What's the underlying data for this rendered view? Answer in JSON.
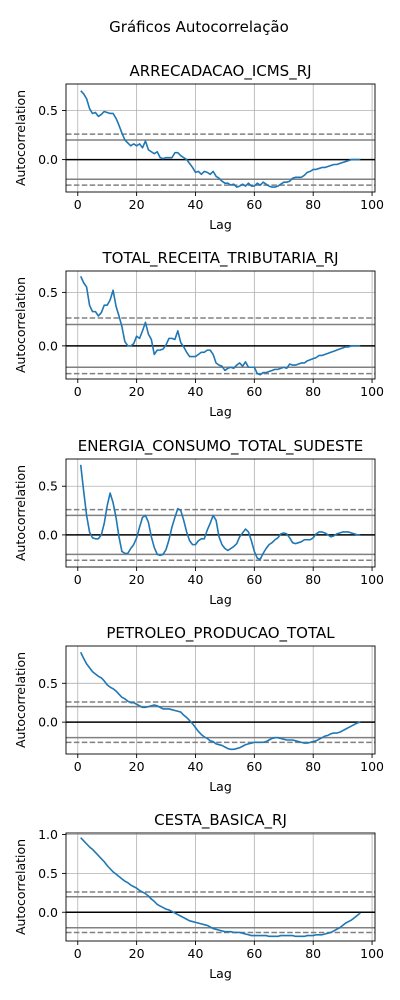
{
  "figure_title": "Gráficos Autocorrelação",
  "colors": {
    "line": "#1f77b4",
    "zero_line": "#000000",
    "band_solid": "#808080",
    "band_dashed": "#808080",
    "grid": "#b0b0b0"
  },
  "chart_data": [
    {
      "type": "line",
      "title": "ARRECADACAO_ICMS_RJ",
      "xlabel": "Lag",
      "ylabel": "Autocorrelation",
      "xlim": [
        -4,
        101
      ],
      "ylim": [
        -0.33,
        0.77
      ],
      "xticks": [
        0,
        20,
        40,
        60,
        80,
        100
      ],
      "yticks": [
        0.5,
        0.0,
        -0.5
      ],
      "ytick_labels": [
        "0.5",
        "0.0"
      ],
      "grid": true,
      "conf_solid": [
        0.2,
        -0.2
      ],
      "conf_dashed": [
        0.26,
        -0.26
      ],
      "x": [
        1,
        2,
        3,
        4,
        5,
        6,
        7,
        8,
        9,
        10,
        11,
        12,
        13,
        14,
        15,
        16,
        17,
        18,
        19,
        20,
        21,
        22,
        23,
        24,
        25,
        26,
        27,
        28,
        29,
        30,
        31,
        32,
        33,
        34,
        35,
        36,
        37,
        38,
        39,
        40,
        41,
        42,
        43,
        44,
        45,
        46,
        47,
        48,
        49,
        50,
        51,
        52,
        53,
        54,
        55,
        56,
        57,
        58,
        59,
        60,
        61,
        62,
        63,
        64,
        65,
        66,
        67,
        68,
        69,
        70,
        71,
        72,
        73,
        74,
        75,
        76,
        77,
        78,
        79,
        80,
        81,
        82,
        83,
        84,
        85,
        86,
        87,
        88,
        89,
        90,
        91,
        92,
        93,
        94,
        95,
        96
      ],
      "values": [
        0.7,
        0.67,
        0.62,
        0.52,
        0.47,
        0.48,
        0.44,
        0.46,
        0.49,
        0.48,
        0.47,
        0.47,
        0.42,
        0.35,
        0.27,
        0.2,
        0.17,
        0.14,
        0.16,
        0.14,
        0.16,
        0.12,
        0.19,
        0.1,
        0.08,
        0.06,
        0.08,
        0.02,
        0.01,
        0.02,
        0.02,
        0.02,
        0.07,
        0.07,
        0.04,
        0.02,
        0.0,
        -0.04,
        -0.08,
        -0.13,
        -0.12,
        -0.15,
        -0.12,
        -0.13,
        -0.15,
        -0.12,
        -0.17,
        -0.19,
        -0.22,
        -0.24,
        -0.24,
        -0.26,
        -0.25,
        -0.28,
        -0.27,
        -0.25,
        -0.27,
        -0.24,
        -0.27,
        -0.27,
        -0.24,
        -0.26,
        -0.23,
        -0.25,
        -0.27,
        -0.28,
        -0.28,
        -0.27,
        -0.25,
        -0.23,
        -0.23,
        -0.22,
        -0.19,
        -0.18,
        -0.18,
        -0.18,
        -0.16,
        -0.13,
        -0.12,
        -0.1,
        -0.1,
        -0.09,
        -0.08,
        -0.08,
        -0.07,
        -0.06,
        -0.05,
        -0.05,
        -0.04,
        -0.03,
        -0.02,
        -0.01,
        0.0,
        0.0,
        0.0,
        0.0
      ]
    },
    {
      "type": "line",
      "title": "TOTAL_RECEITA_TRIBUTARIA_RJ",
      "xlabel": "Lag",
      "ylabel": "Autocorrelation",
      "xlim": [
        -4,
        101
      ],
      "ylim": [
        -0.31,
        0.7
      ],
      "xticks": [
        0,
        20,
        40,
        60,
        80,
        100
      ],
      "yticks": [
        0.5,
        0.0,
        -0.5
      ],
      "ytick_labels": [
        "0.5",
        "0.0"
      ],
      "grid": true,
      "conf_solid": [
        0.2,
        -0.2
      ],
      "conf_dashed": [
        0.26,
        -0.26
      ],
      "x": [
        1,
        2,
        3,
        4,
        5,
        6,
        7,
        8,
        9,
        10,
        11,
        12,
        13,
        14,
        15,
        16,
        17,
        18,
        19,
        20,
        21,
        22,
        23,
        24,
        25,
        26,
        27,
        28,
        29,
        30,
        31,
        32,
        33,
        34,
        35,
        36,
        37,
        38,
        39,
        40,
        41,
        42,
        43,
        44,
        45,
        46,
        47,
        48,
        49,
        50,
        51,
        52,
        53,
        54,
        55,
        56,
        57,
        58,
        59,
        60,
        61,
        62,
        63,
        64,
        65,
        66,
        67,
        68,
        69,
        70,
        71,
        72,
        73,
        74,
        75,
        76,
        77,
        78,
        79,
        80,
        81,
        82,
        83,
        84,
        85,
        86,
        87,
        88,
        89,
        90,
        91,
        92,
        93,
        94,
        95,
        96
      ],
      "values": [
        0.65,
        0.59,
        0.55,
        0.38,
        0.32,
        0.32,
        0.28,
        0.31,
        0.38,
        0.38,
        0.43,
        0.52,
        0.37,
        0.28,
        0.18,
        0.04,
        0.0,
        0.0,
        0.02,
        0.09,
        0.07,
        0.14,
        0.22,
        0.11,
        0.06,
        -0.08,
        -0.04,
        -0.04,
        -0.03,
        0.01,
        0.07,
        0.07,
        0.06,
        0.14,
        0.03,
        -0.01,
        -0.06,
        -0.1,
        -0.1,
        -0.1,
        -0.08,
        -0.06,
        -0.06,
        -0.04,
        -0.04,
        -0.08,
        -0.16,
        -0.18,
        -0.19,
        -0.23,
        -0.21,
        -0.2,
        -0.21,
        -0.18,
        -0.16,
        -0.19,
        -0.15,
        -0.2,
        -0.2,
        -0.2,
        -0.26,
        -0.27,
        -0.25,
        -0.25,
        -0.24,
        -0.23,
        -0.22,
        -0.22,
        -0.21,
        -0.2,
        -0.21,
        -0.17,
        -0.18,
        -0.18,
        -0.17,
        -0.16,
        -0.16,
        -0.14,
        -0.13,
        -0.12,
        -0.11,
        -0.09,
        -0.09,
        -0.08,
        -0.07,
        -0.06,
        -0.05,
        -0.04,
        -0.03,
        -0.02,
        -0.01,
        -0.01,
        0.0,
        0.0,
        0.0,
        0.0
      ]
    },
    {
      "type": "line",
      "title": "ENERGIA_CONSUMO_TOTAL_SUDESTE",
      "xlabel": "Lag",
      "ylabel": "Autocorrelation",
      "xlim": [
        -4,
        101
      ],
      "ylim": [
        -0.33,
        0.78
      ],
      "xticks": [
        0,
        20,
        40,
        60,
        80,
        100
      ],
      "yticks": [
        0.5,
        0.0,
        -0.5
      ],
      "ytick_labels": [
        "0.5",
        "0.0"
      ],
      "grid": true,
      "conf_solid": [
        0.2,
        -0.2
      ],
      "conf_dashed": [
        0.26,
        -0.26
      ],
      "x": [
        1,
        2,
        3,
        4,
        5,
        6,
        7,
        8,
        9,
        10,
        11,
        12,
        13,
        14,
        15,
        16,
        17,
        18,
        19,
        20,
        21,
        22,
        23,
        24,
        25,
        26,
        27,
        28,
        29,
        30,
        31,
        32,
        33,
        34,
        35,
        36,
        37,
        38,
        39,
        40,
        41,
        42,
        43,
        44,
        45,
        46,
        47,
        48,
        49,
        50,
        51,
        52,
        53,
        54,
        55,
        56,
        57,
        58,
        59,
        60,
        61,
        62,
        63,
        64,
        65,
        66,
        67,
        68,
        69,
        70,
        71,
        72,
        73,
        74,
        75,
        76,
        77,
        78,
        79,
        80,
        81,
        82,
        83,
        84,
        85,
        86,
        87,
        88,
        89,
        90,
        91,
        92,
        93,
        94,
        95,
        96
      ],
      "values": [
        0.72,
        0.45,
        0.2,
        0.03,
        -0.03,
        -0.04,
        -0.04,
        0.0,
        0.12,
        0.3,
        0.43,
        0.33,
        0.18,
        -0.02,
        -0.17,
        -0.19,
        -0.19,
        -0.14,
        -0.1,
        -0.03,
        0.08,
        0.18,
        0.2,
        0.13,
        -0.02,
        -0.13,
        -0.2,
        -0.21,
        -0.2,
        -0.15,
        -0.05,
        0.08,
        0.18,
        0.27,
        0.25,
        0.15,
        0.03,
        -0.06,
        -0.1,
        -0.1,
        -0.06,
        -0.04,
        -0.04,
        0.05,
        0.12,
        0.2,
        0.15,
        -0.02,
        -0.1,
        -0.14,
        -0.16,
        -0.14,
        -0.12,
        -0.09,
        -0.02,
        0.02,
        0.06,
        0.03,
        -0.06,
        -0.17,
        -0.24,
        -0.25,
        -0.19,
        -0.14,
        -0.1,
        -0.08,
        -0.05,
        -0.03,
        0.01,
        0.02,
        0.01,
        -0.03,
        -0.08,
        -0.09,
        -0.08,
        -0.07,
        -0.05,
        -0.05,
        -0.05,
        -0.03,
        0.01,
        0.03,
        0.03,
        0.02,
        0.0,
        -0.02,
        -0.01,
        0.01,
        0.02,
        0.03,
        0.03,
        0.03,
        0.02,
        0.01,
        0.0,
        0.0
      ]
    },
    {
      "type": "line",
      "title": "PETROLEO_PRODUCAO_TOTAL",
      "xlabel": "Lag",
      "ylabel": "Autocorrelation",
      "xlim": [
        -4,
        101
      ],
      "ylim": [
        -0.41,
        0.98
      ],
      "xticks": [
        0,
        20,
        40,
        60,
        80,
        100
      ],
      "yticks": [
        0.5,
        0.0,
        -0.5
      ],
      "ytick_labels": [
        "0.5",
        "0.0"
      ],
      "grid": true,
      "conf_solid": [
        0.2,
        -0.2
      ],
      "conf_dashed": [
        0.26,
        -0.26
      ],
      "x": [
        1,
        2,
        3,
        4,
        5,
        6,
        7,
        8,
        9,
        10,
        11,
        12,
        13,
        14,
        15,
        16,
        17,
        18,
        19,
        20,
        21,
        22,
        23,
        24,
        25,
        26,
        27,
        28,
        29,
        30,
        31,
        32,
        33,
        34,
        35,
        36,
        37,
        38,
        39,
        40,
        41,
        42,
        43,
        44,
        45,
        46,
        47,
        48,
        49,
        50,
        51,
        52,
        53,
        54,
        55,
        56,
        57,
        58,
        59,
        60,
        61,
        62,
        63,
        64,
        65,
        66,
        67,
        68,
        69,
        70,
        71,
        72,
        73,
        74,
        75,
        76,
        77,
        78,
        79,
        80,
        81,
        82,
        83,
        84,
        85,
        86,
        87,
        88,
        89,
        90,
        91,
        92,
        93,
        94,
        95,
        96
      ],
      "values": [
        0.9,
        0.82,
        0.75,
        0.7,
        0.65,
        0.62,
        0.59,
        0.57,
        0.53,
        0.48,
        0.45,
        0.43,
        0.4,
        0.36,
        0.32,
        0.3,
        0.27,
        0.25,
        0.25,
        0.23,
        0.21,
        0.19,
        0.19,
        0.2,
        0.21,
        0.22,
        0.21,
        0.19,
        0.17,
        0.17,
        0.17,
        0.16,
        0.15,
        0.14,
        0.13,
        0.09,
        0.06,
        0.02,
        -0.02,
        -0.07,
        -0.12,
        -0.16,
        -0.19,
        -0.21,
        -0.24,
        -0.25,
        -0.28,
        -0.29,
        -0.3,
        -0.32,
        -0.34,
        -0.35,
        -0.35,
        -0.34,
        -0.33,
        -0.31,
        -0.29,
        -0.28,
        -0.27,
        -0.26,
        -0.26,
        -0.26,
        -0.26,
        -0.25,
        -0.23,
        -0.21,
        -0.2,
        -0.2,
        -0.21,
        -0.22,
        -0.23,
        -0.23,
        -0.23,
        -0.24,
        -0.25,
        -0.26,
        -0.27,
        -0.27,
        -0.26,
        -0.25,
        -0.24,
        -0.22,
        -0.2,
        -0.18,
        -0.17,
        -0.15,
        -0.14,
        -0.14,
        -0.13,
        -0.11,
        -0.09,
        -0.07,
        -0.05,
        -0.03,
        -0.01,
        0.0
      ]
    },
    {
      "type": "line",
      "title": "CESTA_BASICA_RJ",
      "xlabel": "Lag",
      "ylabel": "Autocorrelation",
      "xlim": [
        -4,
        101
      ],
      "ylim": [
        -0.37,
        1.02
      ],
      "xticks": [
        0,
        20,
        40,
        60,
        80,
        100
      ],
      "yticks": [
        1.0,
        0.5,
        0.0
      ],
      "ytick_labels": [
        "1.0",
        "0.5",
        "0.0"
      ],
      "grid": true,
      "conf_solid": [
        0.2,
        -0.2
      ],
      "conf_dashed": [
        0.26,
        -0.26
      ],
      "x": [
        1,
        2,
        3,
        4,
        5,
        6,
        7,
        8,
        9,
        10,
        11,
        12,
        13,
        14,
        15,
        16,
        17,
        18,
        19,
        20,
        21,
        22,
        23,
        24,
        25,
        26,
        27,
        28,
        29,
        30,
        31,
        32,
        33,
        34,
        35,
        36,
        37,
        38,
        39,
        40,
        41,
        42,
        43,
        44,
        45,
        46,
        47,
        48,
        49,
        50,
        51,
        52,
        53,
        54,
        55,
        56,
        57,
        58,
        59,
        60,
        61,
        62,
        63,
        64,
        65,
        66,
        67,
        68,
        69,
        70,
        71,
        72,
        73,
        74,
        75,
        76,
        77,
        78,
        79,
        80,
        81,
        82,
        83,
        84,
        85,
        86,
        87,
        88,
        89,
        90,
        91,
        92,
        93,
        94,
        95,
        96
      ],
      "values": [
        0.96,
        0.92,
        0.88,
        0.84,
        0.81,
        0.77,
        0.73,
        0.69,
        0.65,
        0.6,
        0.56,
        0.52,
        0.49,
        0.46,
        0.43,
        0.4,
        0.38,
        0.35,
        0.33,
        0.31,
        0.28,
        0.26,
        0.24,
        0.21,
        0.17,
        0.14,
        0.1,
        0.08,
        0.06,
        0.04,
        0.03,
        0.01,
        -0.01,
        -0.03,
        -0.05,
        -0.07,
        -0.09,
        -0.11,
        -0.12,
        -0.13,
        -0.14,
        -0.15,
        -0.16,
        -0.17,
        -0.19,
        -0.21,
        -0.22,
        -0.23,
        -0.24,
        -0.25,
        -0.25,
        -0.25,
        -0.26,
        -0.26,
        -0.26,
        -0.27,
        -0.28,
        -0.29,
        -0.3,
        -0.3,
        -0.3,
        -0.3,
        -0.3,
        -0.3,
        -0.31,
        -0.31,
        -0.31,
        -0.31,
        -0.3,
        -0.3,
        -0.3,
        -0.3,
        -0.3,
        -0.31,
        -0.31,
        -0.31,
        -0.31,
        -0.3,
        -0.3,
        -0.3,
        -0.29,
        -0.29,
        -0.29,
        -0.28,
        -0.27,
        -0.26,
        -0.24,
        -0.22,
        -0.2,
        -0.17,
        -0.14,
        -0.12,
        -0.1,
        -0.07,
        -0.04,
        -0.01
      ]
    }
  ]
}
